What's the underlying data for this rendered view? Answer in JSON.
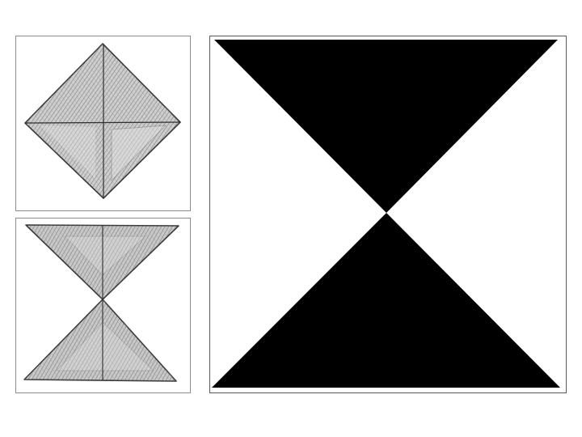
{
  "figures": {
    "sketch_top": {
      "shape": "diamond-sketch",
      "fill": "#b4b4b4",
      "stroke": "#3c3c3c"
    },
    "sketch_bottom": {
      "shape": "hourglass-sketch",
      "fill": "#b4b4b4",
      "stroke": "#3c3c3c"
    },
    "main": {
      "shape": "hourglass-solid",
      "fill": "#000000",
      "background": "#ffffff"
    }
  }
}
